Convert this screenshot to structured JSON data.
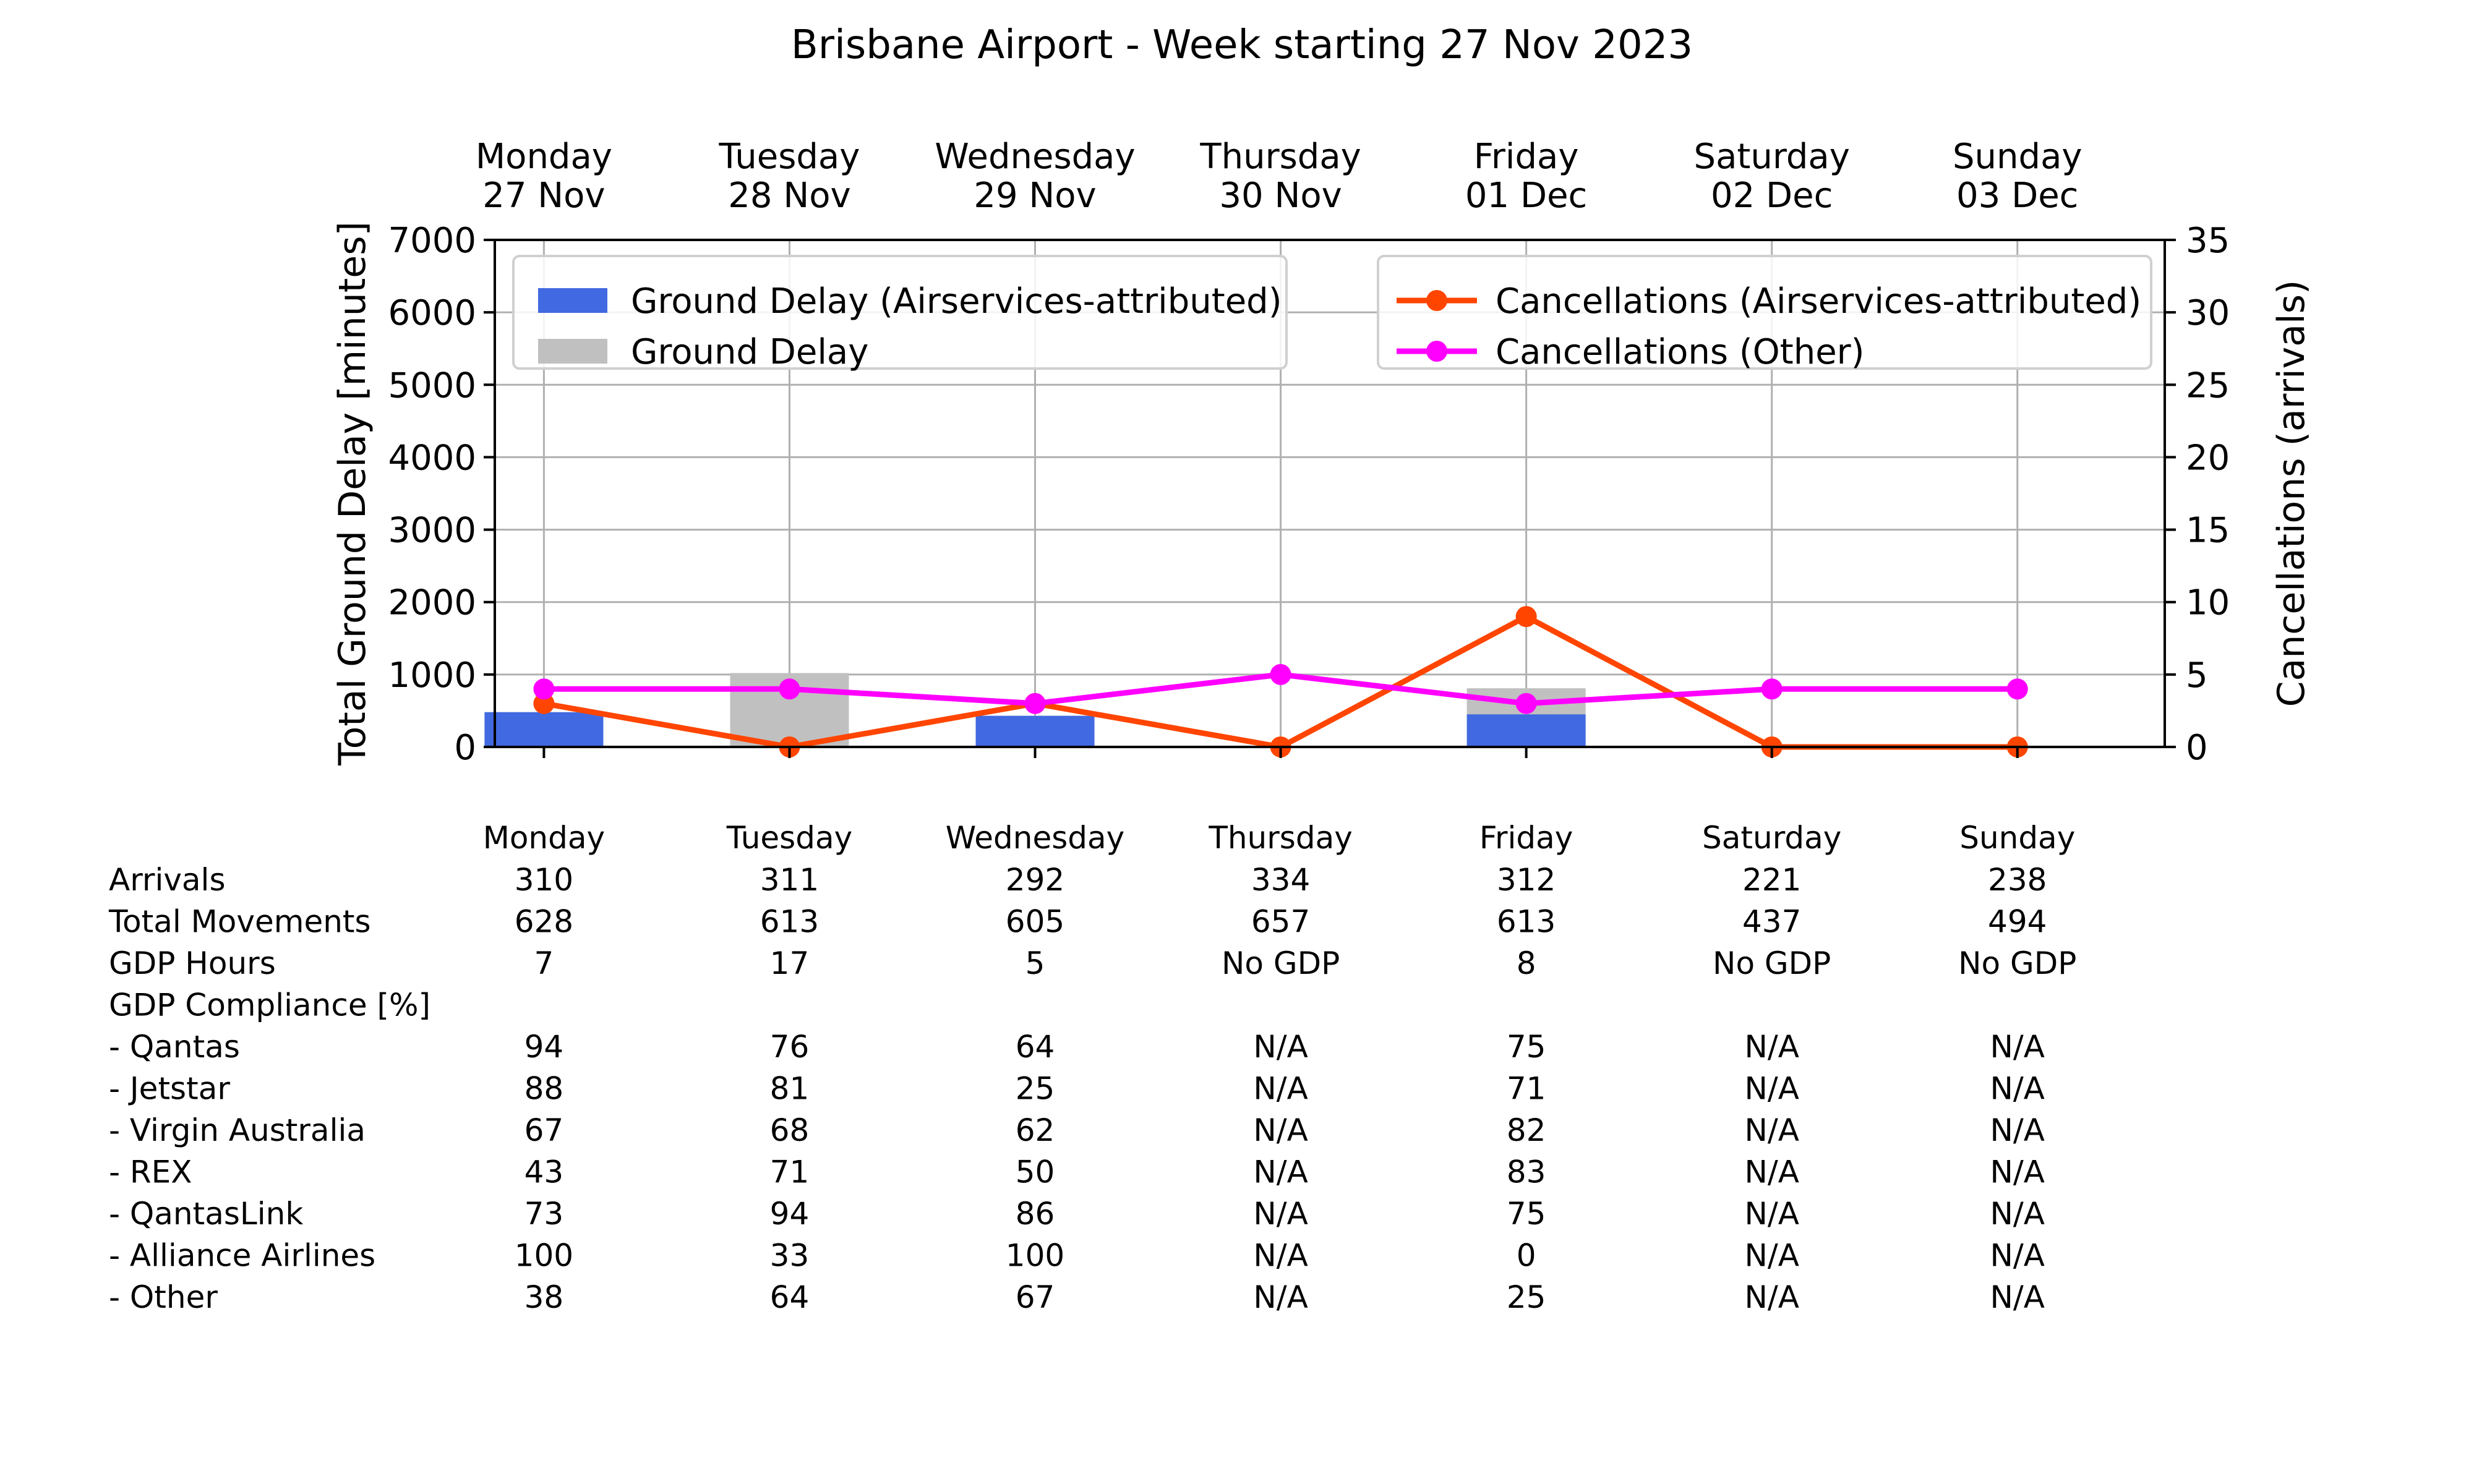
{
  "chart_data": {
    "type": "bar",
    "title": "Brisbane Airport - Week starting 27 Nov 2023",
    "categories": [
      [
        "Monday",
        "27 Nov"
      ],
      [
        "Tuesday",
        "28 Nov"
      ],
      [
        "Wednesday",
        "29 Nov"
      ],
      [
        "Thursday",
        "30 Nov"
      ],
      [
        "Friday",
        "01 Dec"
      ],
      [
        "Saturday",
        "02 Dec"
      ],
      [
        "Sunday",
        "03 Dec"
      ]
    ],
    "ylabel": "Total Ground Delay [minutes]",
    "y2label": "Cancellations (arrivals)",
    "ylim": [
      0,
      7000
    ],
    "y2lim": [
      0,
      35
    ],
    "yticks": [
      0,
      1000,
      2000,
      3000,
      4000,
      5000,
      6000,
      7000
    ],
    "y2ticks": [
      0,
      5,
      10,
      15,
      20,
      25,
      30,
      35
    ],
    "grid": true,
    "bar_series": [
      {
        "name": "Ground Delay",
        "color": "#c0c0c0",
        "values": [
          480,
          1020,
          430,
          0,
          810,
          0,
          0
        ]
      },
      {
        "name": "Ground Delay (Airservices-attributed)",
        "color": "#4169e1",
        "values": [
          480,
          0,
          430,
          0,
          450,
          0,
          0
        ]
      }
    ],
    "line_series": [
      {
        "name": "Cancellations (Airservices-attributed)",
        "color": "#ff4500",
        "values": [
          3,
          0,
          3,
          0,
          9,
          0,
          0
        ]
      },
      {
        "name": "Cancellations (Other)",
        "color": "#ff00ff",
        "values": [
          4,
          4,
          3,
          5,
          3,
          4,
          4
        ]
      }
    ],
    "legend_left": [
      "Ground Delay (Airservices-attributed)",
      "Ground Delay"
    ],
    "legend_right": [
      "Cancellations (Airservices-attributed)",
      "Cancellations (Other)"
    ],
    "legend_left_position": "upper-left",
    "legend_right_position": "upper-right"
  },
  "table": {
    "columns": [
      "Monday",
      "Tuesday",
      "Wednesday",
      "Thursday",
      "Friday",
      "Saturday",
      "Sunday"
    ],
    "rows": [
      {
        "label": "Arrivals",
        "values": [
          "310",
          "311",
          "292",
          "334",
          "312",
          "221",
          "238"
        ]
      },
      {
        "label": "Total Movements",
        "values": [
          "628",
          "613",
          "605",
          "657",
          "613",
          "437",
          "494"
        ]
      },
      {
        "label": "GDP Hours",
        "values": [
          "7",
          "17",
          "5",
          "No GDP",
          "8",
          "No GDP",
          "No GDP"
        ]
      },
      {
        "label": "GDP Compliance [%]",
        "values": [
          "",
          "",
          "",
          "",
          "",
          "",
          ""
        ]
      },
      {
        "label": "  - Qantas",
        "values": [
          "94",
          "76",
          "64",
          "N/A",
          "75",
          "N/A",
          "N/A"
        ]
      },
      {
        "label": "  - Jetstar",
        "values": [
          "88",
          "81",
          "25",
          "N/A",
          "71",
          "N/A",
          "N/A"
        ]
      },
      {
        "label": "  - Virgin Australia",
        "values": [
          "67",
          "68",
          "62",
          "N/A",
          "82",
          "N/A",
          "N/A"
        ]
      },
      {
        "label": "  - REX",
        "values": [
          "43",
          "71",
          "50",
          "N/A",
          "83",
          "N/A",
          "N/A"
        ]
      },
      {
        "label": "  - QantasLink",
        "values": [
          "73",
          "94",
          "86",
          "N/A",
          "75",
          "N/A",
          "N/A"
        ]
      },
      {
        "label": "  - Alliance Airlines",
        "values": [
          "100",
          "33",
          "100",
          "N/A",
          "0",
          "N/A",
          "N/A"
        ]
      },
      {
        "label": "  - Other",
        "values": [
          "38",
          "64",
          "67",
          "N/A",
          "25",
          "N/A",
          "N/A"
        ]
      }
    ]
  }
}
